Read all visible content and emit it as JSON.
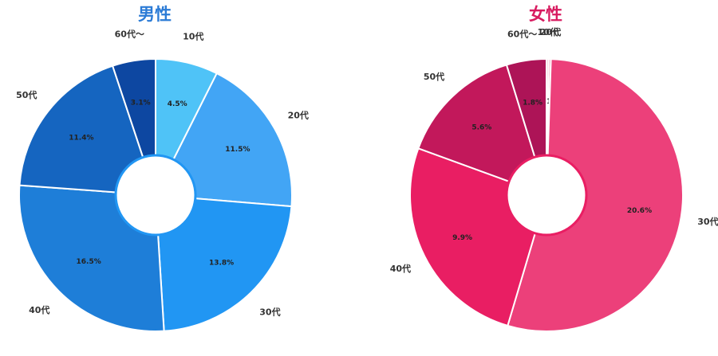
{
  "chart_data": [
    {
      "type": "pie",
      "title": "男性",
      "title_color": "#2b7bd6",
      "categories": [
        "10代",
        "20代",
        "30代",
        "40代",
        "50代",
        "60代〜"
      ],
      "values": [
        4.5,
        11.5,
        13.8,
        16.5,
        11.4,
        3.1
      ],
      "value_labels": [
        "4.5%",
        "11.5%",
        "13.8%",
        "16.5%",
        "11.4%",
        "3.1%"
      ],
      "colors": [
        "#4fc3f7",
        "#42a5f5",
        "#2196f3",
        "#1e7ed8",
        "#1565c0",
        "#0d47a1"
      ],
      "hole_stroke": "#2196f3",
      "donut": true
    },
    {
      "type": "pie",
      "title": "女性",
      "title_color": "#d81b60",
      "categories": [
        "10代",
        "20代",
        "30代",
        "40代",
        "50代",
        "60代〜"
      ],
      "values": [
        0.1,
        0.1,
        20.6,
        9.9,
        5.6,
        1.8
      ],
      "value_labels": [
        "0.1%",
        "0.1%",
        "20.6%",
        "9.9%",
        "5.6%",
        "1.8%"
      ],
      "colors": [
        "#f8bbd0",
        "#f48fb1",
        "#ec407a",
        "#e91e63",
        "#c2185b",
        "#ad1457"
      ],
      "hole_stroke": "#e91e63",
      "donut": true
    }
  ]
}
